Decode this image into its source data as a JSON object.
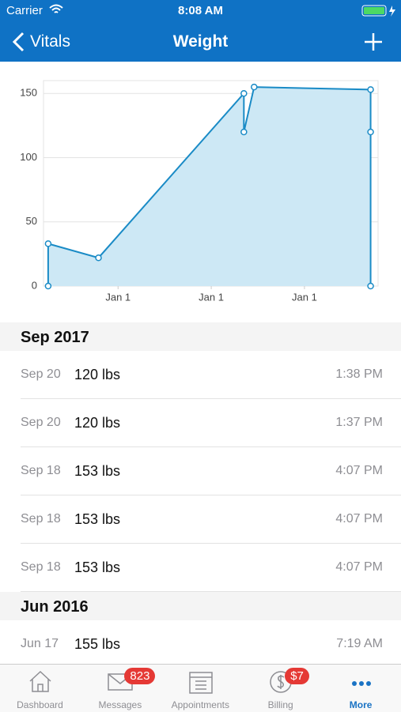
{
  "status": {
    "carrier": "Carrier",
    "time": "8:08 AM"
  },
  "nav": {
    "back": "Vitals",
    "title": "Weight"
  },
  "chart_data": {
    "type": "line",
    "x": [
      0.25,
      0.25,
      0.79,
      2.35,
      2.35,
      2.46,
      3.71,
      3.71,
      3.71
    ],
    "series": [
      {
        "color": "#1a8bc6",
        "values": [
          0,
          33,
          22,
          150,
          120,
          155,
          153,
          120,
          0
        ]
      }
    ],
    "xlim": [
      0.2,
      3.79
    ],
    "xticks": [
      {
        "value": 1,
        "label": "Jan 1"
      },
      {
        "value": 2,
        "label": "Jan 1"
      },
      {
        "value": 3,
        "label": "Jan 1"
      }
    ],
    "ylim": [
      0,
      160
    ],
    "yticks": [
      0,
      50,
      100,
      150
    ],
    "grid": true,
    "fill": "#cde8f5"
  },
  "sections": [
    {
      "title": "Sep 2017",
      "rows": [
        {
          "date": "Sep 20",
          "value": "120 lbs",
          "time": "1:38 PM"
        },
        {
          "date": "Sep 20",
          "value": "120 lbs",
          "time": "1:37 PM"
        },
        {
          "date": "Sep 18",
          "value": "153 lbs",
          "time": "4:07 PM"
        },
        {
          "date": "Sep 18",
          "value": "153 lbs",
          "time": "4:07 PM"
        },
        {
          "date": "Sep 18",
          "value": "153 lbs",
          "time": "4:07 PM"
        }
      ]
    },
    {
      "title": "Jun 2016",
      "rows": [
        {
          "date": "Jun 17",
          "value": "155 lbs",
          "time": "7:19 AM"
        }
      ]
    }
  ],
  "tabs": [
    {
      "label": "Dashboard"
    },
    {
      "label": "Messages",
      "badge": "823"
    },
    {
      "label": "Appointments"
    },
    {
      "label": "Billing",
      "badge": "$7"
    },
    {
      "label": "More"
    }
  ]
}
